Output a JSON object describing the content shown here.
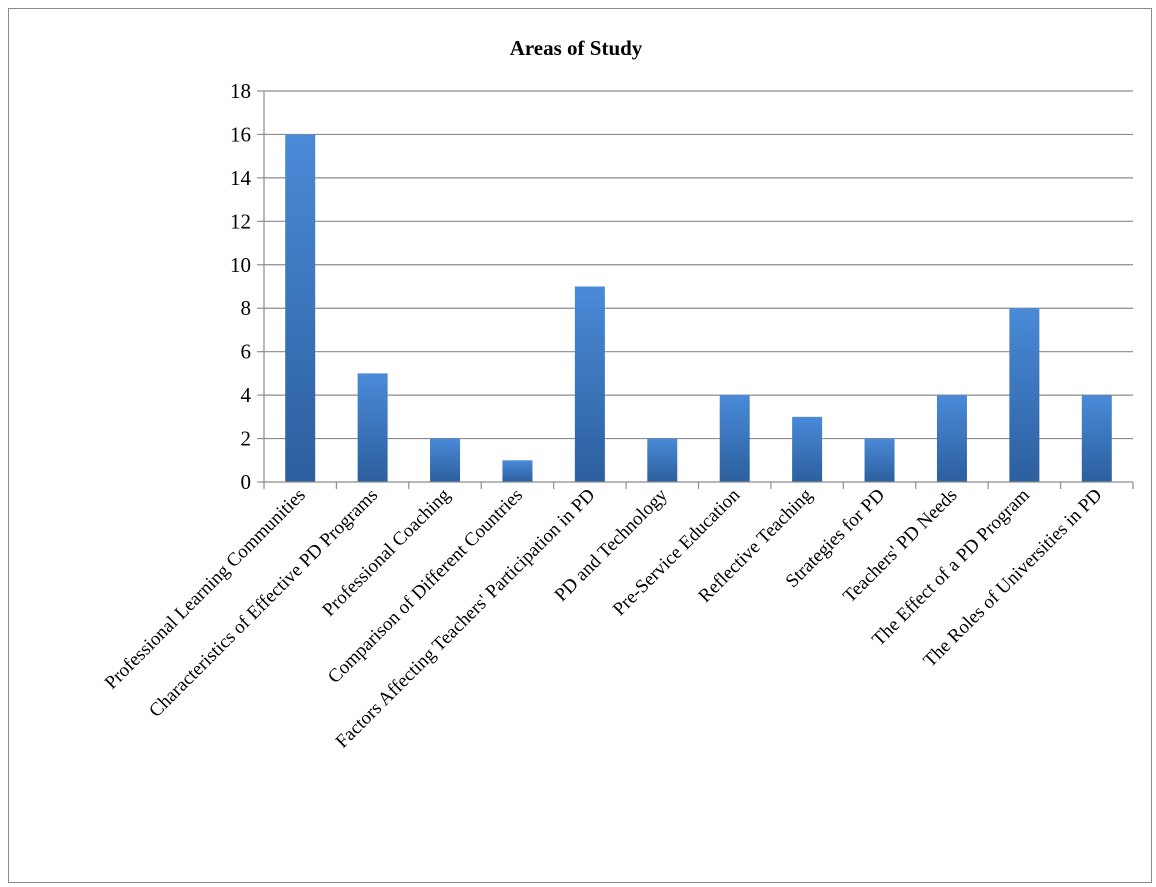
{
  "chart_data": {
    "type": "bar",
    "title": "Areas of Study",
    "categories": [
      "Professional Learning Communities",
      "Characteristics of Effective PD Programs",
      "Professional Coaching",
      "Comparison of Different Countries",
      "Factors Affecting Teachers' Participation in PD",
      "PD and Technology",
      "Pre-Service Education",
      "Reflective Teaching",
      "Strategies for PD",
      "Teachers' PD Needs",
      "The Effect of a PD Program",
      "The Roles of Universities in PD"
    ],
    "values": [
      16,
      5,
      2,
      1,
      9,
      2,
      4,
      3,
      2,
      4,
      8,
      4
    ],
    "ylim": [
      0,
      18
    ],
    "yticks": [
      0,
      2,
      4,
      6,
      8,
      10,
      12,
      14,
      16,
      18
    ],
    "grid": true,
    "legend": "none",
    "bar_color_top": "#4a8ad8",
    "bar_color_bottom": "#2c5f9e",
    "grid_color": "#8c8c8c"
  }
}
